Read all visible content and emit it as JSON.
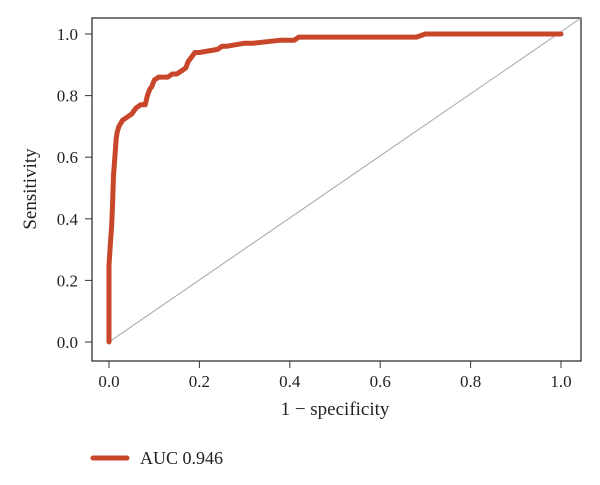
{
  "chart_data": {
    "type": "line",
    "title": "",
    "xlabel": "1 − specificity",
    "ylabel": "Sensitivity",
    "xlim": [
      0,
      1
    ],
    "ylim": [
      0,
      1
    ],
    "xticks": [
      "0.0",
      "0.2",
      "0.4",
      "0.6",
      "0.8",
      "1.0"
    ],
    "yticks": [
      "0.0",
      "0.2",
      "0.4",
      "0.6",
      "0.8",
      "1.0"
    ],
    "grid": false,
    "legend_position": "bottom-left",
    "reference_line": {
      "style": "diagonal",
      "color": "#a6a6a6"
    },
    "series": [
      {
        "name": "AUC 0.946",
        "color": "#c8472a",
        "x": [
          0,
          0,
          0.003,
          0.006,
          0.008,
          0.01,
          0.012,
          0.014,
          0.016,
          0.018,
          0.022,
          0.03,
          0.04,
          0.05,
          0.06,
          0.07,
          0.08,
          0.085,
          0.09,
          0.095,
          0.1,
          0.11,
          0.12,
          0.13,
          0.14,
          0.15,
          0.16,
          0.17,
          0.175,
          0.18,
          0.19,
          0.2,
          0.24,
          0.25,
          0.26,
          0.3,
          0.32,
          0.38,
          0.4,
          0.41,
          0.42,
          0.5,
          0.6,
          0.68,
          0.7,
          0.8,
          0.9,
          1.0
        ],
        "y": [
          0,
          0.25,
          0.32,
          0.38,
          0.45,
          0.54,
          0.58,
          0.62,
          0.66,
          0.68,
          0.7,
          0.72,
          0.73,
          0.74,
          0.76,
          0.77,
          0.77,
          0.8,
          0.82,
          0.83,
          0.85,
          0.86,
          0.86,
          0.86,
          0.87,
          0.87,
          0.88,
          0.89,
          0.91,
          0.92,
          0.94,
          0.94,
          0.95,
          0.96,
          0.96,
          0.97,
          0.97,
          0.98,
          0.98,
          0.98,
          0.99,
          0.99,
          0.99,
          0.99,
          1.0,
          1.0,
          1.0,
          1.0
        ]
      }
    ]
  }
}
